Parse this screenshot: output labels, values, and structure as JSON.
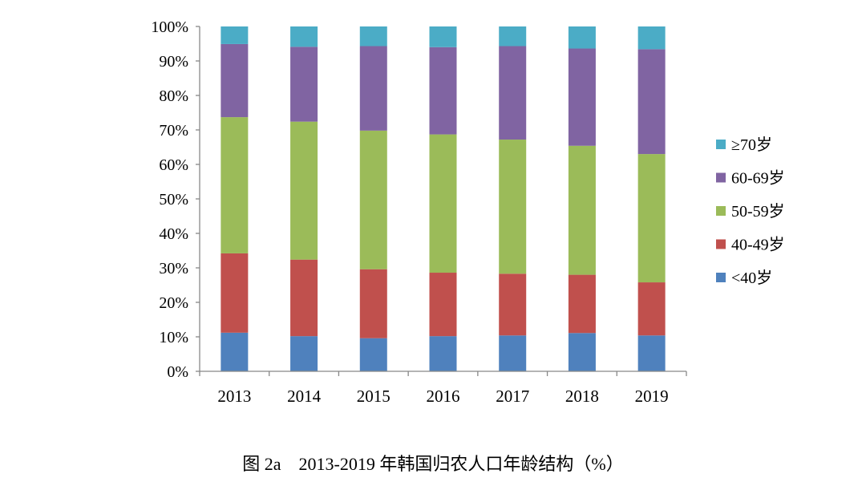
{
  "chart_data": {
    "type": "bar",
    "stacked": true,
    "title": "",
    "caption": "图 2a　2013-2019 年韩国归农人口年龄结构（%）",
    "xlabel": "",
    "ylabel": "",
    "ylim": [
      0,
      100
    ],
    "yticks": [
      "0%",
      "10%",
      "20%",
      "30%",
      "40%",
      "50%",
      "60%",
      "70%",
      "80%",
      "90%",
      "100%"
    ],
    "categories": [
      "2013",
      "2014",
      "2015",
      "2016",
      "2017",
      "2018",
      "2019"
    ],
    "legend_position": "right",
    "series": [
      {
        "name": "<40岁",
        "color": "#4f81bd",
        "values": [
          11.2,
          10.2,
          9.6,
          10.2,
          10.4,
          11.1,
          10.4
        ]
      },
      {
        "name": "40-49岁",
        "color": "#c0504d",
        "values": [
          23.0,
          22.2,
          20.0,
          18.4,
          17.9,
          16.9,
          15.4
        ]
      },
      {
        "name": "50-59岁",
        "color": "#9bbb59",
        "values": [
          39.5,
          40.0,
          40.2,
          40.1,
          38.9,
          37.4,
          37.2
        ]
      },
      {
        "name": "60-69岁",
        "color": "#8064a2",
        "values": [
          21.2,
          21.7,
          24.5,
          25.3,
          27.1,
          28.2,
          30.4
        ]
      },
      {
        "name": "≥70岁",
        "color": "#4bacc6",
        "values": [
          5.1,
          5.9,
          5.7,
          6.0,
          5.7,
          6.4,
          6.6
        ]
      }
    ]
  }
}
